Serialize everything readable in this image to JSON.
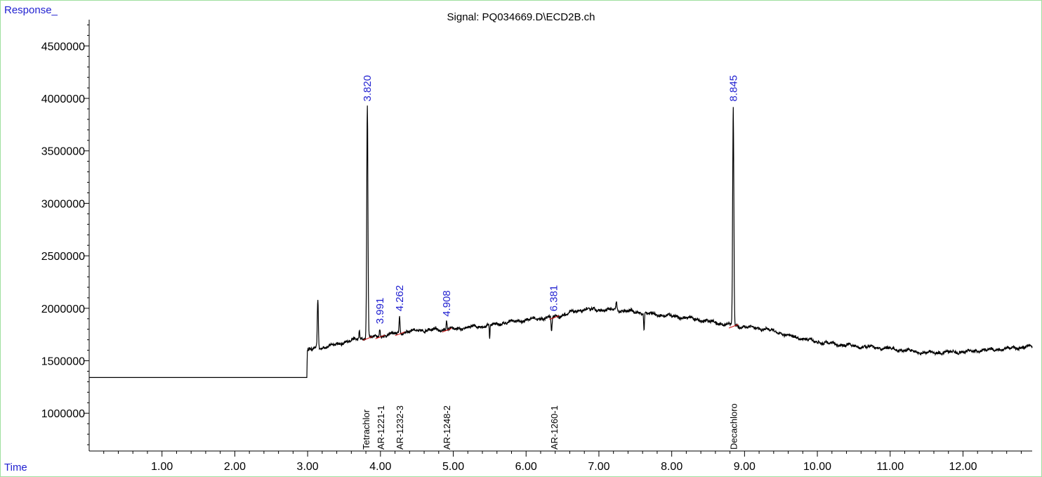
{
  "chart_data": {
    "type": "line",
    "title": "Signal: PQ034669.D\\ECD2B.ch",
    "ylabel": "Response_",
    "xlabel": "Time",
    "xlim": [
      0.0,
      12.95
    ],
    "ylim": [
      640000,
      4750000
    ],
    "x_ticks": [
      1.0,
      2.0,
      3.0,
      4.0,
      5.0,
      6.0,
      7.0,
      8.0,
      9.0,
      10.0,
      11.0,
      12.0
    ],
    "x_tick_labels": [
      "1.00",
      "2.00",
      "3.00",
      "4.00",
      "5.00",
      "6.00",
      "7.00",
      "8.00",
      "9.00",
      "10.00",
      "11.00",
      "12.00"
    ],
    "y_ticks": [
      1000000,
      1500000,
      2000000,
      2500000,
      3000000,
      3500000,
      4000000,
      4500000
    ],
    "y_tick_labels": [
      "1000000",
      "1500000",
      "2000000",
      "2500000",
      "3000000",
      "3500000",
      "4000000",
      "4500000"
    ],
    "grid": false,
    "line_color": "#000000",
    "baseline_color": "#d01010",
    "peak_label_color": "#1f1fd0",
    "baseline_points": [
      {
        "x": 0.0,
        "y": 1340000
      },
      {
        "x": 2.99,
        "y": 1340000
      },
      {
        "x": 2.995,
        "y": 1600000
      },
      {
        "x": 3.3,
        "y": 1640000
      },
      {
        "x": 3.7,
        "y": 1710000
      },
      {
        "x": 4.0,
        "y": 1735000
      },
      {
        "x": 4.5,
        "y": 1790000
      },
      {
        "x": 5.0,
        "y": 1800000
      },
      {
        "x": 5.5,
        "y": 1840000
      },
      {
        "x": 6.0,
        "y": 1890000
      },
      {
        "x": 6.4,
        "y": 1920000
      },
      {
        "x": 6.8,
        "y": 1990000
      },
      {
        "x": 7.3,
        "y": 1980000
      },
      {
        "x": 7.8,
        "y": 1940000
      },
      {
        "x": 8.2,
        "y": 1910000
      },
      {
        "x": 8.8,
        "y": 1840000
      },
      {
        "x": 9.3,
        "y": 1800000
      },
      {
        "x": 9.6,
        "y": 1740000
      },
      {
        "x": 10.0,
        "y": 1680000
      },
      {
        "x": 10.5,
        "y": 1640000
      },
      {
        "x": 11.0,
        "y": 1615000
      },
      {
        "x": 11.5,
        "y": 1575000
      },
      {
        "x": 12.0,
        "y": 1585000
      },
      {
        "x": 12.5,
        "y": 1610000
      },
      {
        "x": 12.95,
        "y": 1635000
      }
    ],
    "spikes": [
      {
        "x": 3.14,
        "y": 2090000,
        "w": 0.022
      },
      {
        "x": 3.71,
        "y": 1800000,
        "w": 0.015
      },
      {
        "x": 3.82,
        "y": 3930000,
        "w": 0.025
      },
      {
        "x": 3.991,
        "y": 1810000,
        "w": 0.02
      },
      {
        "x": 4.262,
        "y": 1930000,
        "w": 0.02
      },
      {
        "x": 4.908,
        "y": 1880000,
        "w": 0.02
      },
      {
        "x": 7.24,
        "y": 2060000,
        "w": 0.02
      },
      {
        "x": 8.845,
        "y": 3930000,
        "w": 0.025
      }
    ],
    "dips": [
      {
        "x": 5.5,
        "y": 1700000,
        "w": 0.015
      },
      {
        "x": 6.35,
        "y": 1770000,
        "w": 0.02
      },
      {
        "x": 7.62,
        "y": 1790000,
        "w": 0.015
      }
    ],
    "peaks": [
      {
        "rt": 3.82,
        "label": "3.820",
        "apex": 3930000
      },
      {
        "rt": 3.991,
        "label": "3.991",
        "apex": 1810000
      },
      {
        "rt": 4.262,
        "label": "4.262",
        "apex": 1930000
      },
      {
        "rt": 4.908,
        "label": "4.908",
        "apex": 1880000
      },
      {
        "rt": 6.381,
        "label": "6.381",
        "apex": 1930000
      },
      {
        "rt": 8.845,
        "label": "8.845",
        "apex": 3930000
      }
    ],
    "compound_labels": [
      {
        "rt": 3.8,
        "label": "Tetrachlor"
      },
      {
        "rt": 4.0,
        "label": "AR-1221-1"
      },
      {
        "rt": 4.262,
        "label": "AR-1232-3"
      },
      {
        "rt": 4.908,
        "label": "AR-1248-2"
      },
      {
        "rt": 6.381,
        "label": "AR-1260-1"
      },
      {
        "rt": 8.845,
        "label": "Decachloro"
      }
    ]
  }
}
